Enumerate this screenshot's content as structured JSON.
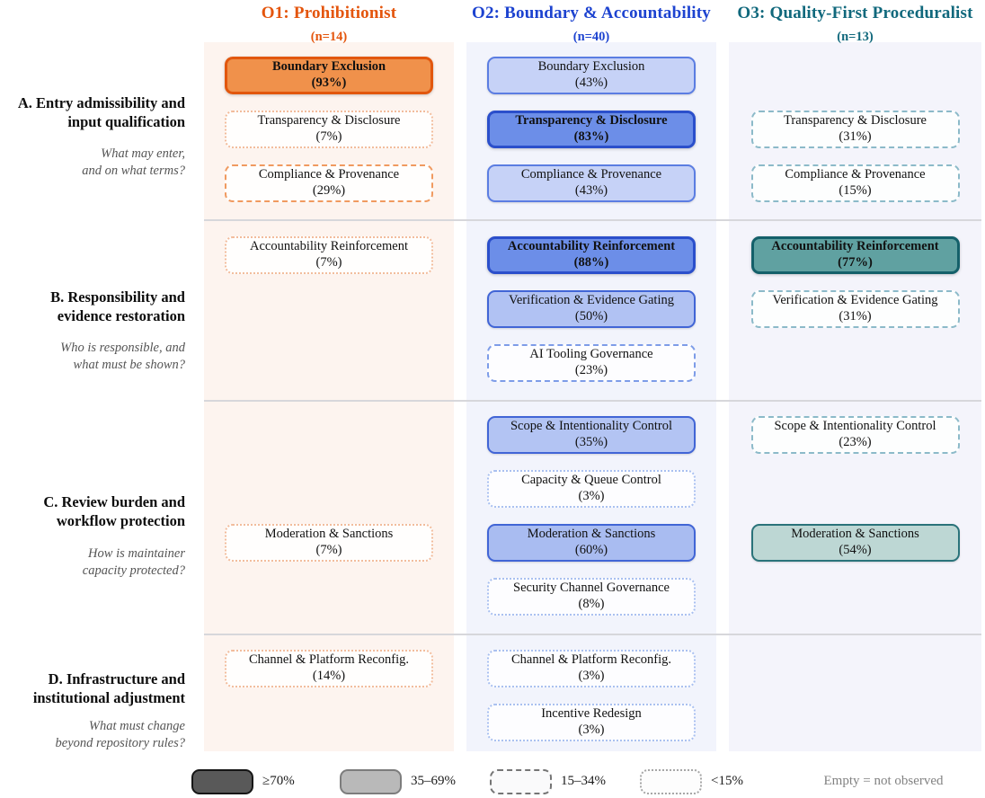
{
  "columns": [
    {
      "id": "o1",
      "title": "O1: Prohibitionist",
      "n": "(n=14)",
      "accent": "#e4550c",
      "bg": "#fdf4ef"
    },
    {
      "id": "o2",
      "title": "O2: Boundary & Accountability",
      "n": "(n=40)",
      "accent": "#1d43d0",
      "bg": "#f2f4fc"
    },
    {
      "id": "o3",
      "title": "O3: Quality-First Proceduralist",
      "n": "(n=13)",
      "accent": "#10687c",
      "bg": "#f4f4fb"
    }
  ],
  "rows": [
    {
      "id": "a",
      "title": "A. Entry admissibility and\ninput qualification",
      "subtitle": "What may enter,\nand on what terms?"
    },
    {
      "id": "b",
      "title": "B. Responsibility and\nevidence restoration",
      "subtitle": "Who is responsible, and\nwhat must be shown?"
    },
    {
      "id": "c",
      "title": "C. Review burden and\nworkflow protection",
      "subtitle": "How is maintainer\ncapacity protected?"
    },
    {
      "id": "d",
      "title": "D. Infrastructure and\ninstitutional adjustment",
      "subtitle": "What must change\nbeyond repository rules?"
    }
  ],
  "boxes": [
    {
      "row": 0,
      "col": 0,
      "slot": 0,
      "label": "Boundary Exclusion",
      "pct": "(93%)",
      "tier": "high"
    },
    {
      "row": 0,
      "col": 0,
      "slot": 1,
      "label": "Transparency & Disclosure",
      "pct": "(7%)",
      "tier": "vlow"
    },
    {
      "row": 0,
      "col": 0,
      "slot": 2,
      "label": "Compliance & Provenance",
      "pct": "(29%)",
      "tier": "low"
    },
    {
      "row": 0,
      "col": 1,
      "slot": 0,
      "label": "Boundary Exclusion",
      "pct": "(43%)",
      "tier": "mid",
      "fill": "#c6d2f7",
      "stroke": "#5b7de2"
    },
    {
      "row": 0,
      "col": 1,
      "slot": 1,
      "label": "Transparency & Disclosure",
      "pct": "(83%)",
      "tier": "high"
    },
    {
      "row": 0,
      "col": 1,
      "slot": 2,
      "label": "Compliance & Provenance",
      "pct": "(43%)",
      "tier": "mid",
      "fill": "#c6d2f7",
      "stroke": "#5b7de2"
    },
    {
      "row": 0,
      "col": 2,
      "slot": 1,
      "label": "Transparency & Disclosure",
      "pct": "(31%)",
      "tier": "low"
    },
    {
      "row": 0,
      "col": 2,
      "slot": 2,
      "label": "Compliance & Provenance",
      "pct": "(15%)",
      "tier": "low"
    },
    {
      "row": 1,
      "col": 0,
      "slot": 0,
      "label": "Accountability Reinforcement",
      "pct": "(7%)",
      "tier": "vlow"
    },
    {
      "row": 1,
      "col": 1,
      "slot": 0,
      "label": "Accountability Reinforcement",
      "pct": "(88%)",
      "tier": "high"
    },
    {
      "row": 1,
      "col": 1,
      "slot": 1,
      "label": "Verification & Evidence Gating",
      "pct": "(50%)",
      "tier": "mid",
      "fill": "#b1c2f3"
    },
    {
      "row": 1,
      "col": 1,
      "slot": 2,
      "label": "AI Tooling Governance",
      "pct": "(23%)",
      "tier": "low"
    },
    {
      "row": 1,
      "col": 2,
      "slot": 0,
      "label": "Accountability Reinforcement",
      "pct": "(77%)",
      "tier": "high"
    },
    {
      "row": 1,
      "col": 2,
      "slot": 1,
      "label": "Verification & Evidence Gating",
      "pct": "(31%)",
      "tier": "low"
    },
    {
      "row": 2,
      "col": 0,
      "slot": 2,
      "label": "Moderation & Sanctions",
      "pct": "(7%)",
      "tier": "vlow"
    },
    {
      "row": 2,
      "col": 1,
      "slot": 0,
      "label": "Scope & Intentionality Control",
      "pct": "(35%)",
      "tier": "mid",
      "fill": "#b3c4f3"
    },
    {
      "row": 2,
      "col": 1,
      "slot": 1,
      "label": "Capacity & Queue Control",
      "pct": "(3%)",
      "tier": "vlow"
    },
    {
      "row": 2,
      "col": 1,
      "slot": 2,
      "label": "Moderation & Sanctions",
      "pct": "(60%)",
      "tier": "mid",
      "fill": "#a9bcf1"
    },
    {
      "row": 2,
      "col": 1,
      "slot": 3,
      "label": "Security Channel Governance",
      "pct": "(8%)",
      "tier": "vlow"
    },
    {
      "row": 2,
      "col": 2,
      "slot": 0,
      "label": "Scope & Intentionality Control",
      "pct": "(23%)",
      "tier": "low"
    },
    {
      "row": 2,
      "col": 2,
      "slot": 2,
      "label": "Moderation & Sanctions",
      "pct": "(54%)",
      "tier": "mid"
    },
    {
      "row": 3,
      "col": 0,
      "slot": 0,
      "label": "Channel & Platform Reconfig.",
      "pct": "(14%)",
      "tier": "vlow"
    },
    {
      "row": 3,
      "col": 1,
      "slot": 0,
      "label": "Channel & Platform Reconfig.",
      "pct": "(3%)",
      "tier": "vlow"
    },
    {
      "row": 3,
      "col": 1,
      "slot": 1,
      "label": "Incentive Redesign",
      "pct": "(3%)",
      "tier": "vlow"
    }
  ],
  "legend": {
    "items": [
      {
        "tier": "high",
        "label": "≥70%"
      },
      {
        "tier": "mid",
        "label": "35–69%"
      },
      {
        "tier": "low",
        "label": "15–34%"
      },
      {
        "tier": "vlow",
        "label": "<15%"
      }
    ],
    "note": "Empty = not observed"
  }
}
